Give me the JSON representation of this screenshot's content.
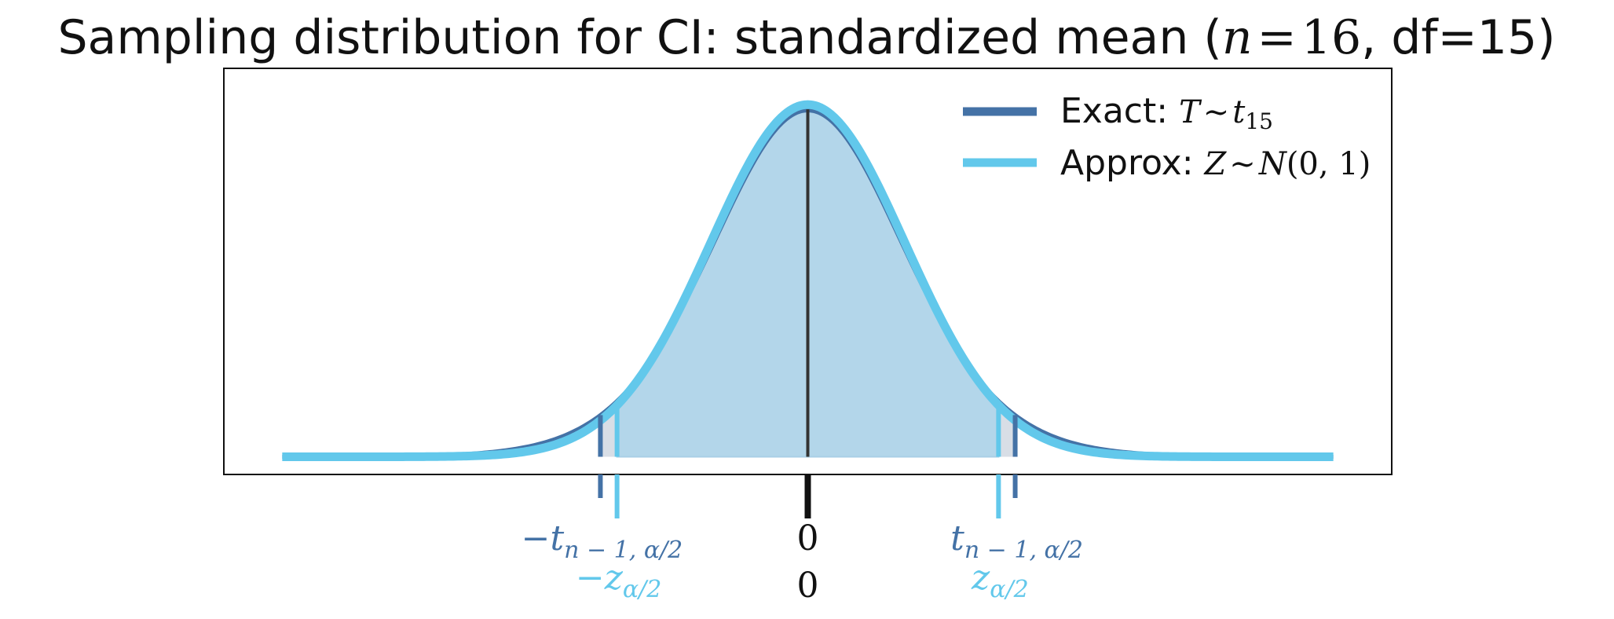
{
  "chart_data": {
    "type": "line",
    "title": {
      "prefix": "Sampling distribution for CI: standardized mean (",
      "n_var": "n",
      "eq": "=",
      "n_val": "16",
      "suffix": ", df=15)"
    },
    "xlabel": "",
    "ylabel": "",
    "xlim": [
      -6,
      6
    ],
    "ylim": [
      -0.02,
      0.44
    ],
    "grid": false,
    "df": 15,
    "series": [
      {
        "name": "Exact",
        "distribution": "t",
        "df": 15,
        "color": "#4472a6",
        "legend": {
          "prefix": "Exact: ",
          "lhs": "T",
          "tilde": "∼",
          "rhs": "t",
          "sub": "15"
        }
      },
      {
        "name": "Approx",
        "distribution": "normal",
        "color": "#62c8eb",
        "legend": {
          "prefix": "Approx: ",
          "lhs": "Z",
          "tilde": "∼",
          "rhs": "N",
          "args": "(0, 1)"
        }
      }
    ],
    "legend_position": "top-right",
    "critical_values": {
      "t": 2.131,
      "z": 1.96
    },
    "shade_color": "#b3d6ea",
    "tail_color": "#d8dee6",
    "center_line_color": "#333333",
    "tick_labels": {
      "t_lower": {
        "sign": "−",
        "var": "t",
        "sub": "n − 1, α/2"
      },
      "t_upper": {
        "var": "t",
        "sub": "n − 1, α/2"
      },
      "z_lower": {
        "sign": "−",
        "var": "z",
        "sub": "α/2"
      },
      "z_upper": {
        "var": "z",
        "sub": "α/2"
      },
      "center_t": "0",
      "center_z": "0"
    }
  }
}
